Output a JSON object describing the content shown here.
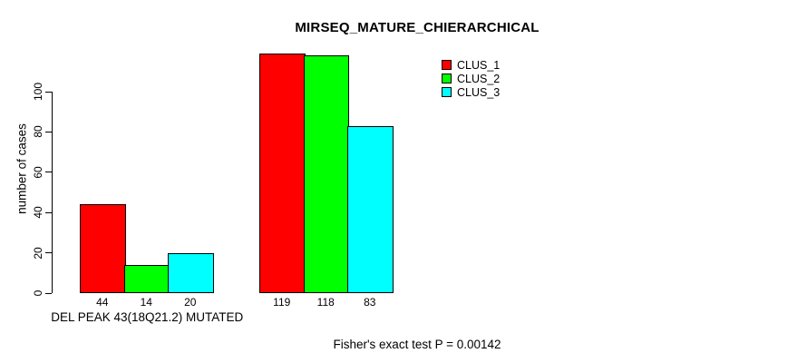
{
  "chart_data": {
    "type": "bar",
    "title": "MIRSEQ_MATURE_CHIERARCHICAL",
    "xlabel": "",
    "ylabel": "number of cases",
    "ylim": [
      0,
      100
    ],
    "yticks": [
      0,
      20,
      40,
      60,
      80,
      100
    ],
    "grid": false,
    "legend_position": "top-right",
    "categories": [
      "DEL PEAK 43(18Q21.2) MUTATED",
      ""
    ],
    "groups": [
      {
        "label": "DEL PEAK 43(18Q21.2) MUTATED",
        "values": [
          44,
          14,
          20
        ]
      },
      {
        "label": "",
        "values": [
          119,
          118,
          83
        ]
      }
    ],
    "series": [
      {
        "name": "CLUS_1",
        "color": "#ff0000",
        "values": [
          44,
          119
        ]
      },
      {
        "name": "CLUS_2",
        "color": "#00ff00",
        "values": [
          14,
          118
        ]
      },
      {
        "name": "CLUS_3",
        "color": "#00ffff",
        "values": [
          20,
          83
        ]
      }
    ],
    "bar_value_labels": [
      [
        "44",
        "14",
        "20"
      ],
      [
        "119",
        "118",
        "83"
      ]
    ],
    "annotation": "Fisher's exact test P = 0.00142"
  },
  "colors": {
    "axis": "#000000",
    "background": "#ffffff",
    "clus_1": "#ff0000",
    "clus_2": "#00ff00",
    "clus_3": "#00ffff"
  }
}
